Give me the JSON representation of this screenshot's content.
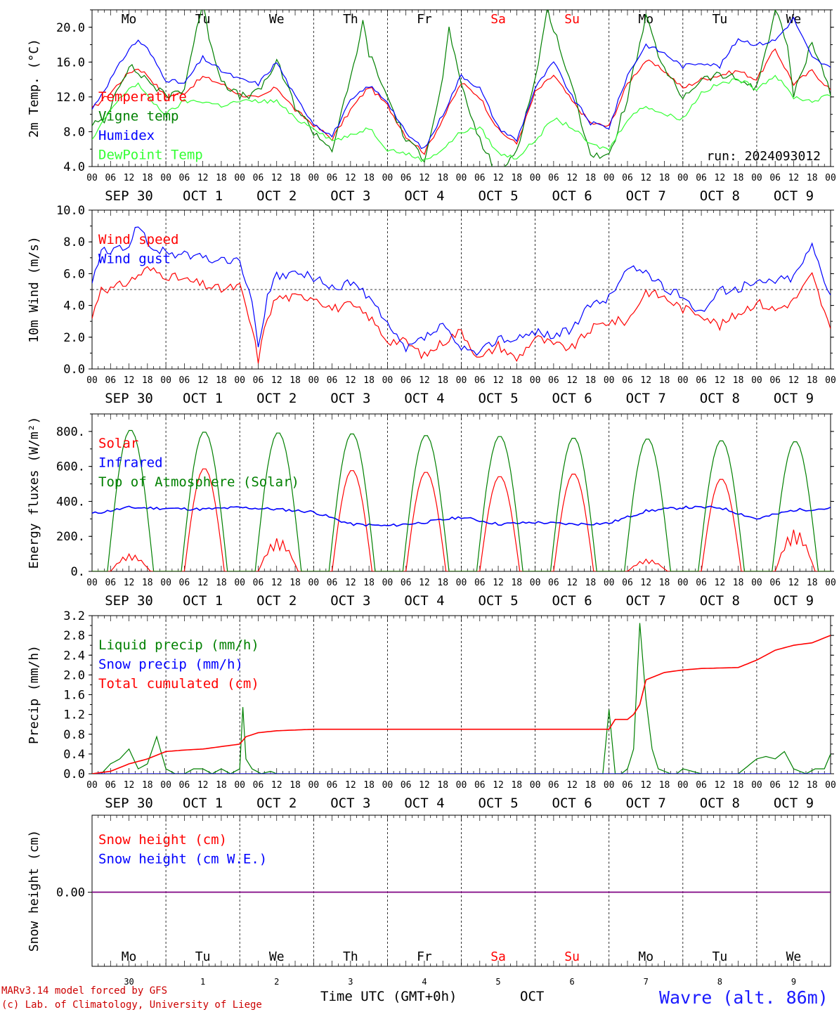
{
  "run_label": "run: 2024093012",
  "footer": {
    "model": "MARv3.14 model forced by GFS",
    "copyright": "(c) Lab. of Climatology, University of Liege",
    "xlabel": "Time UTC (GMT+0h)",
    "month": "OCT",
    "station": "Wavre (alt. 86m)"
  },
  "hour_ticks": [
    "00",
    "06",
    "12",
    "18"
  ],
  "date_labels": [
    "SEP 30",
    "OCT  1",
    "OCT  2",
    "OCT  3",
    "OCT  4",
    "OCT  5",
    "OCT  6",
    "OCT  7",
    "OCT  8",
    "OCT  9"
  ],
  "weekdays": [
    "Mo",
    "Tu",
    "We",
    "Th",
    "Fr",
    "Sa",
    "Su",
    "Mo",
    "Tu",
    "We"
  ],
  "day_numbers": [
    "30",
    "1",
    "2",
    "3",
    "4",
    "5",
    "6",
    "7",
    "8",
    "9"
  ],
  "colors": {
    "weekday": "#000000",
    "weekend": "#ff0000",
    "footer_red": "#cc0000",
    "station": "#1a1aff"
  },
  "chart_data": [
    {
      "type": "line",
      "ylabel": "2m Temp. (°C)",
      "ylim": [
        4,
        22
      ],
      "yticks": [
        4,
        8,
        12,
        16,
        20
      ],
      "ytick_labels": [
        "4.0",
        "8.0",
        "12.0",
        "16.0",
        "20.0"
      ],
      "x_unit": "hours since 2024-09-30 00 UTC",
      "xlim": [
        0,
        240
      ],
      "series": [
        {
          "name": "Temperature",
          "color": "#ff0000",
          "x": [
            0,
            6,
            12,
            15,
            18,
            24,
            30,
            36,
            42,
            48,
            54,
            60,
            66,
            72,
            78,
            84,
            90,
            96,
            102,
            108,
            114,
            120,
            126,
            132,
            138,
            144,
            150,
            156,
            162,
            168,
            174,
            180,
            186,
            192,
            198,
            204,
            210,
            216,
            222,
            228,
            234,
            240
          ],
          "y": [
            10.6,
            12.5,
            14.8,
            15.3,
            14.5,
            12.0,
            12.5,
            14.3,
            13.5,
            12.3,
            11.8,
            13.1,
            10.5,
            8.8,
            7.2,
            10.5,
            13.2,
            11.0,
            7.5,
            5.6,
            9.5,
            13.6,
            12.0,
            8.2,
            6.6,
            12.5,
            14.5,
            11.5,
            9.0,
            8.6,
            13.5,
            16.2,
            15.0,
            13.0,
            14.0,
            14.5,
            15.0,
            14.0,
            17.5,
            13.5,
            15.0,
            12.8
          ]
        },
        {
          "name": "Vigne temp",
          "color": "#008000",
          "x": [
            0,
            4,
            8,
            12,
            18,
            24,
            30,
            34,
            36,
            38,
            42,
            48,
            54,
            60,
            66,
            72,
            78,
            84,
            88,
            90,
            96,
            102,
            108,
            114,
            116,
            120,
            126,
            132,
            138,
            144,
            148,
            150,
            156,
            162,
            168,
            174,
            180,
            186,
            192,
            198,
            204,
            210,
            216,
            222,
            226,
            228,
            234,
            240
          ],
          "y": [
            9.0,
            9.0,
            13.0,
            15.5,
            14.0,
            12.0,
            13.0,
            20.0,
            22.5,
            19.0,
            14.0,
            12.0,
            12.5,
            16.0,
            11.0,
            8.0,
            6.0,
            14.0,
            20.5,
            17.0,
            12.0,
            7.0,
            5.0,
            14.0,
            20.0,
            13.0,
            7.0,
            3.0,
            6.0,
            14.0,
            22.0,
            20.0,
            13.0,
            5.5,
            5.0,
            12.0,
            21.0,
            15.0,
            12.0,
            14.0,
            14.5,
            14.0,
            13.0,
            22.0,
            18.0,
            12.0,
            18.5,
            12.5
          ]
        },
        {
          "name": "Humidex",
          "color": "#0000ff",
          "x": [
            0,
            6,
            12,
            15,
            18,
            24,
            30,
            36,
            42,
            48,
            54,
            60,
            66,
            72,
            78,
            84,
            90,
            96,
            102,
            108,
            114,
            120,
            126,
            132,
            138,
            144,
            150,
            156,
            162,
            168,
            174,
            180,
            186,
            192,
            198,
            204,
            210,
            216,
            222,
            228,
            234,
            240
          ],
          "y": [
            10.6,
            14.0,
            17.5,
            18.5,
            17.5,
            14.0,
            13.5,
            16.5,
            15.0,
            14.0,
            13.5,
            16.0,
            12.0,
            9.0,
            7.5,
            11.5,
            13.3,
            11.5,
            7.8,
            6.0,
            10.0,
            14.5,
            13.0,
            8.5,
            7.0,
            13.0,
            16.0,
            12.0,
            9.0,
            8.5,
            14.5,
            18.0,
            17.0,
            15.5,
            16.0,
            15.5,
            18.7,
            18.0,
            18.5,
            21.0,
            16.5,
            15.3
          ]
        },
        {
          "name": "DewPoint Temp",
          "color": "#33ff33",
          "x": [
            0,
            6,
            12,
            15,
            18,
            24,
            30,
            36,
            42,
            48,
            54,
            60,
            66,
            72,
            78,
            84,
            90,
            96,
            102,
            108,
            114,
            120,
            126,
            132,
            138,
            144,
            150,
            156,
            162,
            168,
            174,
            180,
            186,
            192,
            198,
            204,
            210,
            216,
            222,
            228,
            234,
            240
          ],
          "y": [
            7.0,
            10.5,
            13.0,
            13.5,
            12.0,
            10.0,
            11.5,
            11.5,
            11.0,
            11.5,
            11.5,
            11.5,
            9.5,
            8.5,
            7.0,
            7.5,
            8.5,
            6.0,
            5.5,
            4.7,
            6.0,
            8.0,
            8.5,
            5.5,
            5.0,
            7.0,
            9.5,
            8.5,
            6.5,
            6.0,
            9.5,
            11.0,
            10.0,
            9.5,
            12.5,
            13.5,
            14.0,
            13.0,
            14.5,
            12.0,
            11.5,
            12.2
          ]
        }
      ],
      "legend_placement": "top-left"
    },
    {
      "type": "line",
      "ylabel": "10m Wind (m/s)",
      "ylim": [
        0,
        10
      ],
      "yticks": [
        0,
        2,
        4,
        6,
        8,
        10
      ],
      "ytick_labels": [
        "0.0",
        "2.0",
        "4.0",
        "6.0",
        "8.0",
        "10.0"
      ],
      "reference_line": 5,
      "xlim": [
        0,
        240
      ],
      "series": [
        {
          "name": "Wind speed",
          "color": "#ff0000",
          "x": [
            0,
            3,
            6,
            12,
            18,
            24,
            30,
            36,
            42,
            48,
            52,
            54,
            57,
            60,
            66,
            72,
            78,
            84,
            90,
            96,
            102,
            108,
            114,
            120,
            126,
            132,
            138,
            144,
            150,
            156,
            162,
            168,
            174,
            180,
            186,
            192,
            198,
            204,
            210,
            216,
            222,
            228,
            234,
            240
          ],
          "y": [
            3.2,
            5.2,
            5.0,
            5.5,
            6.3,
            5.9,
            5.6,
            5.3,
            5.0,
            5.2,
            2.5,
            0.6,
            3.3,
            4.5,
            4.5,
            4.6,
            3.8,
            4.0,
            3.3,
            1.8,
            1.7,
            0.8,
            1.7,
            2.4,
            0.6,
            1.5,
            0.6,
            2.0,
            1.5,
            1.3,
            2.5,
            3.0,
            3.0,
            4.9,
            4.5,
            3.8,
            3.5,
            2.7,
            3.5,
            4.2,
            3.7,
            4.3,
            5.9,
            2.4
          ]
        },
        {
          "name": "Wind gust",
          "color": "#0000ff",
          "x": [
            0,
            3,
            6,
            12,
            15,
            18,
            24,
            30,
            36,
            42,
            48,
            52,
            54,
            57,
            60,
            66,
            72,
            78,
            84,
            90,
            96,
            102,
            108,
            114,
            120,
            126,
            132,
            138,
            144,
            150,
            156,
            162,
            168,
            174,
            180,
            186,
            192,
            198,
            204,
            210,
            216,
            222,
            228,
            234,
            240
          ],
          "y": [
            5.3,
            7.5,
            7.3,
            7.8,
            9.2,
            7.8,
            7.3,
            7.2,
            7.0,
            6.8,
            6.9,
            4.0,
            1.5,
            4.5,
            5.8,
            6.0,
            5.8,
            5.0,
            5.5,
            4.5,
            2.7,
            1.2,
            2.0,
            2.7,
            1.2,
            1.0,
            2.0,
            1.8,
            2.4,
            2.1,
            2.5,
            4.0,
            4.5,
            6.3,
            6.2,
            5.0,
            4.6,
            3.6,
            4.9,
            5.1,
            5.4,
            5.6,
            5.8,
            7.8,
            4.7
          ]
        }
      ],
      "legend_placement": "top-left"
    },
    {
      "type": "line",
      "ylabel": "Energy fluxes (W/m²)",
      "ylim": [
        0,
        900
      ],
      "yticks": [
        0,
        200,
        400,
        600,
        800
      ],
      "ytick_labels": [
        "0.",
        "200.",
        "400.",
        "600.",
        "800."
      ],
      "xlim": [
        0,
        240
      ],
      "series": [
        {
          "name": "Solar",
          "color": "#ff0000",
          "daily_peaks": [
            100,
            590,
            190,
            580,
            570,
            545,
            560,
            70,
            530,
            240
          ]
        },
        {
          "name": "Infrared",
          "color": "#0000ff",
          "x": [
            0,
            12,
            24,
            36,
            48,
            60,
            72,
            84,
            96,
            108,
            120,
            132,
            144,
            156,
            168,
            180,
            192,
            204,
            216,
            228,
            240
          ],
          "y": [
            330,
            365,
            360,
            355,
            365,
            355,
            340,
            270,
            260,
            280,
            310,
            270,
            280,
            270,
            275,
            345,
            365,
            365,
            300,
            350,
            360
          ]
        },
        {
          "name": "Top of Atmosphere (Solar)",
          "color": "#008000",
          "daily_peaks": [
            810,
            800,
            795,
            790,
            780,
            775,
            765,
            760,
            750,
            745
          ]
        }
      ],
      "legend_placement": "top-left"
    },
    {
      "type": "line",
      "ylabel": "Precip (mm/h)",
      "ylim": [
        0,
        3.2
      ],
      "yticks": [
        0,
        0.4,
        0.8,
        1.2,
        1.6,
        2.0,
        2.4,
        2.8,
        3.2
      ],
      "ytick_labels": [
        "0.0",
        "0.4",
        "0.8",
        "1.2",
        "1.6",
        "2.0",
        "2.4",
        "2.8",
        "3.2"
      ],
      "xlim": [
        0,
        240
      ],
      "series": [
        {
          "name": "Liquid precip (mm/h)",
          "color": "#008000",
          "x": [
            0,
            3,
            6,
            9,
            12,
            15,
            18,
            21,
            24,
            27,
            30,
            33,
            36,
            39,
            42,
            45,
            48,
            49,
            50,
            52,
            55,
            58,
            60,
            66,
            72,
            96,
            120,
            144,
            166,
            168,
            170,
            172,
            174,
            176,
            178,
            180,
            182,
            184,
            186,
            188,
            190,
            192,
            198,
            204,
            210,
            216,
            219,
            222,
            225,
            228,
            232,
            235,
            238,
            240
          ],
          "y": [
            0,
            0,
            0.2,
            0.3,
            0.5,
            0.1,
            0.2,
            0.75,
            0.1,
            0,
            0,
            0.1,
            0.1,
            0,
            0.1,
            0,
            0.1,
            1.35,
            0.3,
            0.1,
            0,
            0.05,
            0,
            0,
            0,
            0,
            0,
            0,
            0,
            1.3,
            0,
            0,
            0.1,
            0.5,
            3.05,
            1.5,
            0.5,
            0.1,
            0.05,
            0,
            0,
            0.1,
            0,
            0,
            0,
            0.3,
            0.35,
            0.3,
            0.45,
            0.1,
            0,
            0.1,
            0.1,
            0.4
          ]
        },
        {
          "name": "Snow precip (mm/h)",
          "color": "#0000ff",
          "x": [
            0,
            240
          ],
          "y": [
            0,
            0
          ]
        },
        {
          "name": "Total cumulated (cm)",
          "color": "#ff0000",
          "x": [
            0,
            6,
            12,
            18,
            24,
            30,
            36,
            42,
            48,
            50,
            54,
            60,
            72,
            96,
            120,
            144,
            166,
            168,
            170,
            174,
            176,
            178,
            180,
            186,
            192,
            198,
            204,
            210,
            216,
            222,
            228,
            234,
            240
          ],
          "y": [
            0,
            0.05,
            0.2,
            0.3,
            0.45,
            0.48,
            0.5,
            0.55,
            0.6,
            0.75,
            0.83,
            0.87,
            0.9,
            0.9,
            0.9,
            0.9,
            0.9,
            0.9,
            1.1,
            1.1,
            1.2,
            1.4,
            1.9,
            2.05,
            2.1,
            2.13,
            2.14,
            2.15,
            2.3,
            2.5,
            2.6,
            2.65,
            2.8
          ]
        }
      ],
      "legend_placement": "top-left"
    },
    {
      "type": "line",
      "ylabel": "Snow height (cm)",
      "ytick_labels": [
        "0.00"
      ],
      "xlim": [
        0,
        240
      ],
      "series": [
        {
          "name": "Snow height (cm)",
          "color": "#ff0000",
          "x": [
            0,
            240
          ],
          "y": [
            0,
            0
          ]
        },
        {
          "name": "Snow height (cm W.E.)",
          "color": "#0000ff",
          "x": [
            0,
            240
          ],
          "y": [
            0,
            0
          ]
        }
      ],
      "legend_placement": "top-left"
    }
  ]
}
